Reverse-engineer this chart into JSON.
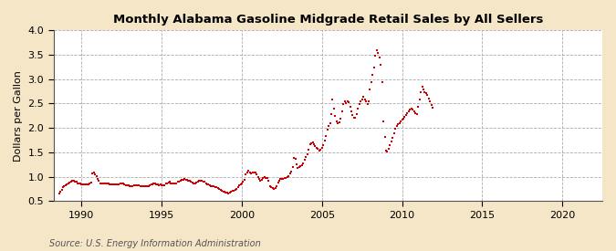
{
  "title": "Monthly Alabama Gasoline Midgrade Retail Sales by All Sellers",
  "ylabel": "Dollars per Gallon",
  "source_text": "Source: U.S. Energy Information Administration",
  "bg_color": "#f5e6c8",
  "plot_bg_color": "#ffffff",
  "dot_color": "#cc0000",
  "dot_size": 3,
  "xlim_left": 1988.25,
  "xlim_right": 2022.5,
  "ylim_bottom": 0.5,
  "ylim_top": 4.0,
  "xticks": [
    1990,
    1995,
    2000,
    2005,
    2010,
    2015,
    2020
  ],
  "yticks": [
    0.5,
    1.0,
    1.5,
    2.0,
    2.5,
    3.0,
    3.5,
    4.0
  ],
  "data_points": [
    [
      1988.583,
      0.66
    ],
    [
      1988.667,
      0.7
    ],
    [
      1988.75,
      0.74
    ],
    [
      1988.833,
      0.78
    ],
    [
      1988.917,
      0.8
    ],
    [
      1989.0,
      0.82
    ],
    [
      1989.083,
      0.84
    ],
    [
      1989.167,
      0.86
    ],
    [
      1989.25,
      0.88
    ],
    [
      1989.333,
      0.9
    ],
    [
      1989.417,
      0.92
    ],
    [
      1989.5,
      0.91
    ],
    [
      1989.583,
      0.9
    ],
    [
      1989.667,
      0.89
    ],
    [
      1989.75,
      0.87
    ],
    [
      1989.833,
      0.86
    ],
    [
      1989.917,
      0.87
    ],
    [
      1990.0,
      0.85
    ],
    [
      1990.083,
      0.84
    ],
    [
      1990.167,
      0.84
    ],
    [
      1990.25,
      0.84
    ],
    [
      1990.333,
      0.85
    ],
    [
      1990.417,
      0.85
    ],
    [
      1990.5,
      0.86
    ],
    [
      1990.583,
      0.88
    ],
    [
      1990.667,
      1.06
    ],
    [
      1990.75,
      1.09
    ],
    [
      1990.833,
      1.05
    ],
    [
      1990.917,
      1.01
    ],
    [
      1991.0,
      0.95
    ],
    [
      1991.083,
      0.91
    ],
    [
      1991.167,
      0.87
    ],
    [
      1991.25,
      0.86
    ],
    [
      1991.333,
      0.86
    ],
    [
      1991.417,
      0.87
    ],
    [
      1991.5,
      0.87
    ],
    [
      1991.583,
      0.87
    ],
    [
      1991.667,
      0.86
    ],
    [
      1991.75,
      0.85
    ],
    [
      1991.833,
      0.85
    ],
    [
      1991.917,
      0.85
    ],
    [
      1992.0,
      0.84
    ],
    [
      1992.083,
      0.84
    ],
    [
      1992.167,
      0.84
    ],
    [
      1992.25,
      0.85
    ],
    [
      1992.333,
      0.85
    ],
    [
      1992.417,
      0.86
    ],
    [
      1992.5,
      0.86
    ],
    [
      1992.583,
      0.86
    ],
    [
      1992.667,
      0.84
    ],
    [
      1992.75,
      0.83
    ],
    [
      1992.833,
      0.83
    ],
    [
      1992.917,
      0.82
    ],
    [
      1993.0,
      0.81
    ],
    [
      1993.083,
      0.81
    ],
    [
      1993.167,
      0.81
    ],
    [
      1993.25,
      0.83
    ],
    [
      1993.333,
      0.83
    ],
    [
      1993.417,
      0.83
    ],
    [
      1993.5,
      0.83
    ],
    [
      1993.583,
      0.82
    ],
    [
      1993.667,
      0.81
    ],
    [
      1993.75,
      0.81
    ],
    [
      1993.833,
      0.81
    ],
    [
      1993.917,
      0.81
    ],
    [
      1994.0,
      0.81
    ],
    [
      1994.083,
      0.81
    ],
    [
      1994.167,
      0.81
    ],
    [
      1994.25,
      0.83
    ],
    [
      1994.333,
      0.84
    ],
    [
      1994.417,
      0.85
    ],
    [
      1994.5,
      0.86
    ],
    [
      1994.583,
      0.86
    ],
    [
      1994.667,
      0.85
    ],
    [
      1994.75,
      0.84
    ],
    [
      1994.833,
      0.83
    ],
    [
      1994.917,
      0.84
    ],
    [
      1995.0,
      0.83
    ],
    [
      1995.083,
      0.83
    ],
    [
      1995.167,
      0.83
    ],
    [
      1995.25,
      0.86
    ],
    [
      1995.333,
      0.87
    ],
    [
      1995.417,
      0.88
    ],
    [
      1995.5,
      0.89
    ],
    [
      1995.583,
      0.87
    ],
    [
      1995.667,
      0.86
    ],
    [
      1995.75,
      0.86
    ],
    [
      1995.833,
      0.86
    ],
    [
      1995.917,
      0.87
    ],
    [
      1996.0,
      0.89
    ],
    [
      1996.083,
      0.9
    ],
    [
      1996.167,
      0.91
    ],
    [
      1996.25,
      0.93
    ],
    [
      1996.333,
      0.94
    ],
    [
      1996.417,
      0.96
    ],
    [
      1996.5,
      0.94
    ],
    [
      1996.583,
      0.93
    ],
    [
      1996.667,
      0.92
    ],
    [
      1996.75,
      0.91
    ],
    [
      1996.833,
      0.89
    ],
    [
      1996.917,
      0.88
    ],
    [
      1997.0,
      0.87
    ],
    [
      1997.083,
      0.87
    ],
    [
      1997.167,
      0.88
    ],
    [
      1997.25,
      0.9
    ],
    [
      1997.333,
      0.91
    ],
    [
      1997.417,
      0.92
    ],
    [
      1997.5,
      0.91
    ],
    [
      1997.583,
      0.9
    ],
    [
      1997.667,
      0.89
    ],
    [
      1997.75,
      0.87
    ],
    [
      1997.833,
      0.85
    ],
    [
      1997.917,
      0.84
    ],
    [
      1998.0,
      0.82
    ],
    [
      1998.083,
      0.81
    ],
    [
      1998.167,
      0.8
    ],
    [
      1998.25,
      0.8
    ],
    [
      1998.333,
      0.79
    ],
    [
      1998.417,
      0.78
    ],
    [
      1998.5,
      0.77
    ],
    [
      1998.583,
      0.75
    ],
    [
      1998.667,
      0.73
    ],
    [
      1998.75,
      0.72
    ],
    [
      1998.833,
      0.7
    ],
    [
      1998.917,
      0.69
    ],
    [
      1999.0,
      0.68
    ],
    [
      1999.083,
      0.67
    ],
    [
      1999.167,
      0.66
    ],
    [
      1999.25,
      0.67
    ],
    [
      1999.333,
      0.69
    ],
    [
      1999.417,
      0.71
    ],
    [
      1999.5,
      0.72
    ],
    [
      1999.583,
      0.73
    ],
    [
      1999.667,
      0.75
    ],
    [
      1999.75,
      0.79
    ],
    [
      1999.833,
      0.82
    ],
    [
      1999.917,
      0.84
    ],
    [
      2000.0,
      0.86
    ],
    [
      2000.083,
      0.89
    ],
    [
      2000.167,
      0.94
    ],
    [
      2000.25,
      1.04
    ],
    [
      2000.333,
      1.09
    ],
    [
      2000.417,
      1.12
    ],
    [
      2000.5,
      1.09
    ],
    [
      2000.583,
      1.07
    ],
    [
      2000.667,
      1.08
    ],
    [
      2000.75,
      1.09
    ],
    [
      2000.833,
      1.09
    ],
    [
      2000.917,
      1.04
    ],
    [
      2001.0,
      1.0
    ],
    [
      2001.083,
      0.96
    ],
    [
      2001.167,
      0.92
    ],
    [
      2001.25,
      0.94
    ],
    [
      2001.333,
      0.97
    ],
    [
      2001.417,
      0.99
    ],
    [
      2001.5,
      0.98
    ],
    [
      2001.583,
      0.97
    ],
    [
      2001.667,
      0.92
    ],
    [
      2001.75,
      0.81
    ],
    [
      2001.833,
      0.78
    ],
    [
      2001.917,
      0.76
    ],
    [
      2002.0,
      0.75
    ],
    [
      2002.083,
      0.76
    ],
    [
      2002.167,
      0.81
    ],
    [
      2002.25,
      0.88
    ],
    [
      2002.333,
      0.92
    ],
    [
      2002.417,
      0.95
    ],
    [
      2002.5,
      0.95
    ],
    [
      2002.583,
      0.96
    ],
    [
      2002.667,
      0.97
    ],
    [
      2002.75,
      0.97
    ],
    [
      2002.833,
      0.99
    ],
    [
      2002.917,
      1.01
    ],
    [
      2003.0,
      1.06
    ],
    [
      2003.083,
      1.1
    ],
    [
      2003.167,
      1.19
    ],
    [
      2003.25,
      1.39
    ],
    [
      2003.333,
      1.36
    ],
    [
      2003.417,
      1.26
    ],
    [
      2003.5,
      1.18
    ],
    [
      2003.583,
      1.19
    ],
    [
      2003.667,
      1.21
    ],
    [
      2003.75,
      1.23
    ],
    [
      2003.833,
      1.28
    ],
    [
      2003.917,
      1.34
    ],
    [
      2004.0,
      1.41
    ],
    [
      2004.083,
      1.47
    ],
    [
      2004.167,
      1.56
    ],
    [
      2004.25,
      1.66
    ],
    [
      2004.333,
      1.69
    ],
    [
      2004.417,
      1.71
    ],
    [
      2004.5,
      1.67
    ],
    [
      2004.583,
      1.62
    ],
    [
      2004.667,
      1.59
    ],
    [
      2004.75,
      1.58
    ],
    [
      2004.833,
      1.54
    ],
    [
      2004.917,
      1.55
    ],
    [
      2005.0,
      1.59
    ],
    [
      2005.083,
      1.64
    ],
    [
      2005.167,
      1.74
    ],
    [
      2005.25,
      1.84
    ],
    [
      2005.333,
      1.97
    ],
    [
      2005.417,
      2.04
    ],
    [
      2005.5,
      2.09
    ],
    [
      2005.583,
      2.29
    ],
    [
      2005.667,
      2.59
    ],
    [
      2005.75,
      2.39
    ],
    [
      2005.833,
      2.24
    ],
    [
      2005.917,
      2.14
    ],
    [
      2006.0,
      2.09
    ],
    [
      2006.083,
      2.11
    ],
    [
      2006.167,
      2.19
    ],
    [
      2006.25,
      2.34
    ],
    [
      2006.333,
      2.49
    ],
    [
      2006.417,
      2.54
    ],
    [
      2006.5,
      2.51
    ],
    [
      2006.583,
      2.54
    ],
    [
      2006.667,
      2.52
    ],
    [
      2006.75,
      2.44
    ],
    [
      2006.833,
      2.34
    ],
    [
      2006.917,
      2.27
    ],
    [
      2007.0,
      2.21
    ],
    [
      2007.083,
      2.21
    ],
    [
      2007.167,
      2.29
    ],
    [
      2007.25,
      2.39
    ],
    [
      2007.333,
      2.49
    ],
    [
      2007.417,
      2.54
    ],
    [
      2007.5,
      2.59
    ],
    [
      2007.583,
      2.64
    ],
    [
      2007.667,
      2.59
    ],
    [
      2007.75,
      2.54
    ],
    [
      2007.833,
      2.49
    ],
    [
      2007.917,
      2.54
    ],
    [
      2008.0,
      2.79
    ],
    [
      2008.083,
      2.94
    ],
    [
      2008.167,
      3.09
    ],
    [
      2008.25,
      3.24
    ],
    [
      2008.333,
      3.49
    ],
    [
      2008.417,
      3.59
    ],
    [
      2008.5,
      3.54
    ],
    [
      2008.583,
      3.44
    ],
    [
      2008.667,
      3.29
    ],
    [
      2008.75,
      2.94
    ],
    [
      2008.833,
      2.14
    ],
    [
      2008.917,
      1.81
    ],
    [
      2009.0,
      1.54
    ],
    [
      2009.083,
      1.51
    ],
    [
      2009.167,
      1.57
    ],
    [
      2009.25,
      1.64
    ],
    [
      2009.333,
      1.72
    ],
    [
      2009.417,
      1.79
    ],
    [
      2009.5,
      1.89
    ],
    [
      2009.583,
      1.99
    ],
    [
      2009.667,
      2.04
    ],
    [
      2009.75,
      2.07
    ],
    [
      2009.833,
      2.09
    ],
    [
      2009.917,
      2.14
    ],
    [
      2010.0,
      2.17
    ],
    [
      2010.083,
      2.2
    ],
    [
      2010.167,
      2.23
    ],
    [
      2010.25,
      2.27
    ],
    [
      2010.333,
      2.31
    ],
    [
      2010.417,
      2.34
    ],
    [
      2010.5,
      2.37
    ],
    [
      2010.583,
      2.39
    ],
    [
      2010.667,
      2.37
    ],
    [
      2010.75,
      2.34
    ],
    [
      2010.833,
      2.31
    ],
    [
      2010.917,
      2.29
    ],
    [
      2011.0,
      2.44
    ],
    [
      2011.083,
      2.59
    ],
    [
      2011.167,
      2.74
    ],
    [
      2011.25,
      2.84
    ],
    [
      2011.333,
      2.79
    ],
    [
      2011.417,
      2.74
    ],
    [
      2011.5,
      2.71
    ],
    [
      2011.583,
      2.67
    ],
    [
      2011.667,
      2.61
    ],
    [
      2011.75,
      2.54
    ],
    [
      2011.833,
      2.47
    ],
    [
      2011.917,
      2.41
    ]
  ]
}
